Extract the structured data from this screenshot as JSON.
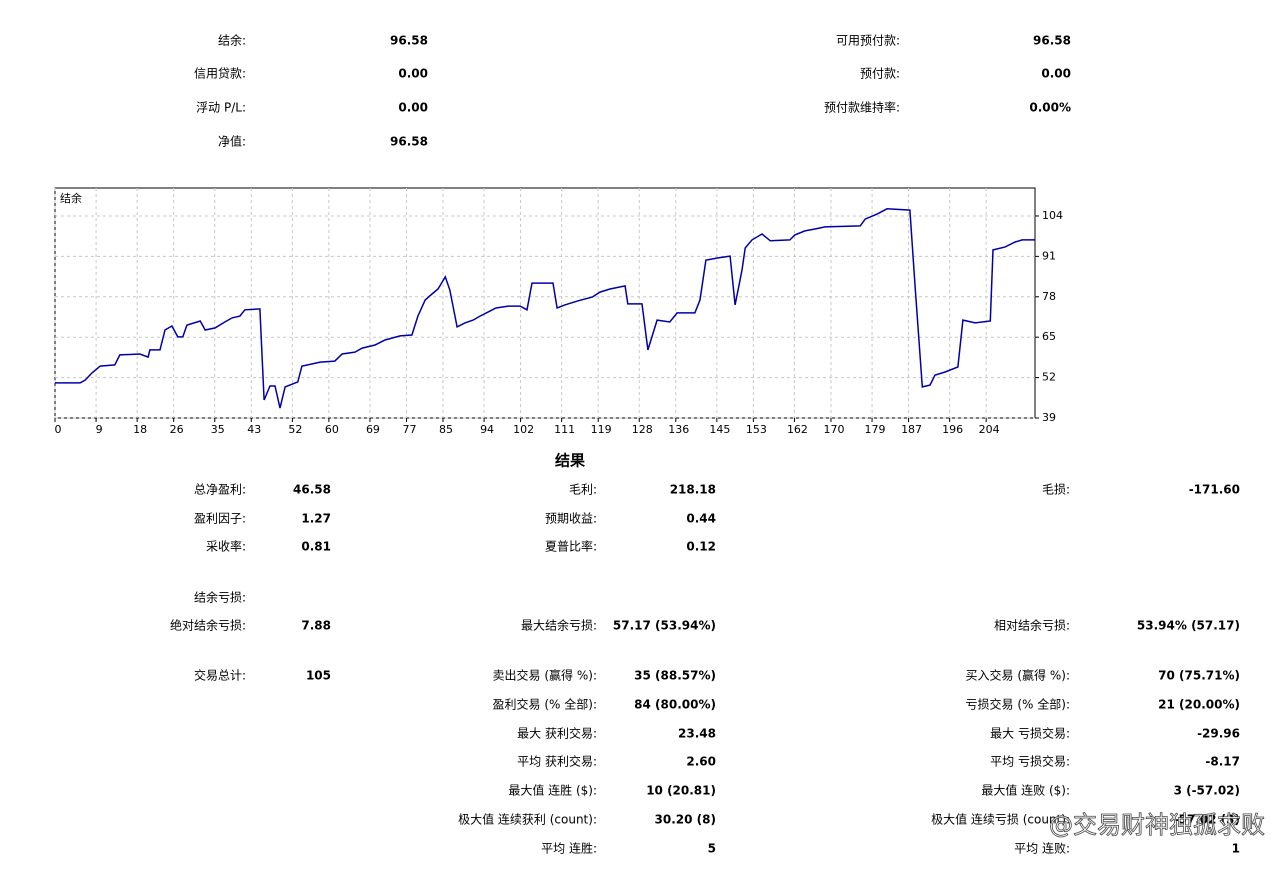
{
  "summary": {
    "left": [
      [
        "结余:",
        "96.58"
      ],
      [
        "信用贷款:",
        "0.00"
      ],
      [
        "浮动 P/L:",
        "0.00"
      ],
      [
        "净值:",
        "96.58"
      ]
    ],
    "right": [
      [
        "可用预付款:",
        "96.58"
      ],
      [
        "预付款:",
        "0.00"
      ],
      [
        "预付款维持率:",
        "0.00%"
      ]
    ]
  },
  "chart": {
    "type": "line",
    "label": "结余",
    "color": "#0000a8",
    "x": [
      0,
      5.5,
      6.6,
      8.1,
      9.9,
      13.1,
      14.2,
      18.6,
      20.4,
      20.8,
      23.0,
      24.1,
      25.6,
      26.9,
      28.0,
      28.9,
      31.8,
      32.9,
      35.1,
      37.2,
      38.8,
      40.5,
      41.6,
      44.9,
      45.8,
      47.1,
      48.2,
      49.3,
      50.4,
      53.2,
      54.1,
      58.1,
      61.3,
      62.9,
      65.7,
      67.3,
      70.1,
      72.3,
      75.6,
      78.2,
      79.5,
      81.1,
      82.6,
      83.9,
      85.5,
      86.5,
      88.1,
      89.8,
      91.6,
      93.1,
      95.3,
      96.6,
      99.3,
      101.9,
      103.4,
      104.5,
      109.1,
      110.0,
      111.7,
      114.6,
      117.7,
      119.4,
      121.6,
      124.9,
      125.5,
      128.6,
      129.9,
      131.9,
      134.7,
      136.3,
      140.2,
      141.3,
      142.6,
      145.3,
      147.9,
      149.0,
      150.5,
      151.2,
      152.7,
      154.9,
      156.7,
      161.0,
      162.1,
      164.3,
      166.5,
      168.7,
      176.4,
      177.5,
      180.1,
      182.3,
      187.3,
      188.4,
      190.0,
      191.7,
      192.8,
      195.0,
      197.8,
      198.9,
      201.6,
      204.9,
      205.5,
      208.1,
      210.3,
      211.9,
      214.7
    ],
    "values": [
      50.3,
      50.3,
      51.2,
      53.5,
      55.7,
      56.1,
      59.3,
      59.6,
      58.6,
      60.9,
      60.9,
      67.3,
      68.6,
      65.1,
      65.1,
      68.9,
      70.2,
      67.3,
      68.0,
      69.9,
      71.2,
      71.8,
      73.8,
      74.1,
      44.8,
      49.3,
      49.3,
      42.2,
      49.0,
      50.6,
      55.7,
      57.0,
      57.3,
      59.6,
      60.2,
      61.5,
      62.5,
      64.1,
      65.4,
      65.7,
      71.8,
      77.0,
      78.9,
      80.5,
      84.4,
      80.2,
      68.3,
      69.6,
      70.5,
      71.8,
      73.4,
      74.4,
      75.0,
      75.0,
      73.8,
      82.4,
      82.4,
      74.4,
      75.4,
      76.7,
      77.9,
      79.5,
      80.5,
      81.5,
      75.7,
      75.7,
      60.9,
      70.5,
      69.9,
      72.8,
      72.8,
      77.0,
      89.8,
      90.5,
      91.1,
      75.4,
      86.6,
      93.7,
      96.3,
      98.2,
      96.0,
      96.3,
      97.9,
      99.2,
      99.8,
      100.5,
      100.8,
      103.0,
      104.6,
      106.3,
      105.9,
      81.8,
      49.0,
      49.6,
      52.8,
      53.8,
      55.4,
      70.5,
      69.6,
      70.2,
      93.1,
      94.0,
      95.6,
      96.3,
      96.3
    ],
    "xlim": [
      0,
      214.7
    ],
    "ylim": [
      39,
      113
    ],
    "xticks": [
      0,
      9,
      18,
      26,
      35,
      43,
      52,
      60,
      69,
      77,
      85,
      94,
      102,
      111,
      119,
      128,
      136,
      145,
      153,
      162,
      170,
      179,
      187,
      196,
      204
    ],
    "yticks": [
      39,
      52,
      65,
      78,
      91,
      104
    ],
    "grid": true
  },
  "results": {
    "title": "结果",
    "rows": [
      [
        {
          "label": "总净盈利:",
          "value": "46.58"
        },
        {
          "label": "毛利:",
          "value": "218.18"
        },
        {
          "label": "毛损:",
          "value": "-171.60"
        }
      ],
      [
        {
          "label": "盈利因子:",
          "value": "1.27"
        },
        {
          "label": "预期收益:",
          "value": "0.44"
        },
        null
      ],
      [
        {
          "label": "采收率:",
          "value": "0.81"
        },
        {
          "label": "夏普比率:",
          "value": "0.12"
        },
        null
      ],
      [
        {
          "label": "结余亏损:"
        },
        null,
        null
      ],
      [
        {
          "label": "绝对结余亏损:",
          "value": "7.88"
        },
        {
          "label": "最大结余亏损:",
          "value": "57.17 (53.94%)"
        },
        {
          "label": "相对结余亏损:",
          "value": "53.94% (57.17)"
        }
      ],
      [
        {
          "label": "交易总计:",
          "value": "105"
        },
        {
          "label": "卖出交易 (赢得 %):",
          "value": "35 (88.57%)"
        },
        {
          "label": "买入交易 (赢得 %):",
          "value": "70 (75.71%)"
        }
      ],
      [
        null,
        {
          "label": "盈利交易 (% 全部):",
          "value": "84 (80.00%)"
        },
        {
          "label": "亏损交易 (% 全部):",
          "value": "21 (20.00%)"
        }
      ],
      [
        null,
        {
          "label": "最大 获利交易:",
          "value": "23.48"
        },
        {
          "label": "最大 亏损交易:",
          "value": "-29.96"
        }
      ],
      [
        null,
        {
          "label": "平均 获利交易:",
          "value": "2.60"
        },
        {
          "label": "平均 亏损交易:",
          "value": "-8.17"
        }
      ],
      [
        null,
        {
          "label": "最大值 连胜 ($):",
          "value": "10 (20.81)"
        },
        {
          "label": "最大值 连败 ($):",
          "value": "3 (-57.02)"
        }
      ],
      [
        null,
        {
          "label": "极大值 连续获利 (count):",
          "value": "30.20 (8)"
        },
        {
          "label": "极大值 连续亏损 (count):",
          "value": "-57.02 (3)"
        }
      ],
      [
        null,
        {
          "label": "平均 连胜:",
          "value": "5"
        },
        {
          "label": "平均 连败:",
          "value": "1"
        }
      ]
    ]
  },
  "watermark": "@交易财神独孤求败"
}
